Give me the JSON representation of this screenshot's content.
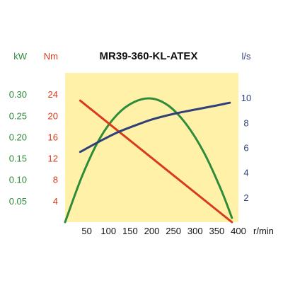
{
  "chart_data": {
    "type": "line",
    "title": "MR39-360-KL-ATEX",
    "x": {
      "unit": "r/min",
      "range": [
        0,
        400
      ],
      "ticks": [
        50,
        100,
        150,
        200,
        250,
        300,
        350,
        400
      ]
    },
    "axes": {
      "kw": {
        "unit": "kW",
        "range": [
          0,
          0.35
        ],
        "ticks": [
          0.05,
          0.1,
          0.15,
          0.2,
          0.25,
          0.3
        ],
        "tick_labels": [
          "0.05",
          "0.10",
          "0.15",
          "0.20",
          "0.25",
          "0.30"
        ],
        "color": "#2e8b3a"
      },
      "nm": {
        "unit": "Nm",
        "range": [
          0,
          28
        ],
        "ticks": [
          4,
          8,
          12,
          16,
          20,
          24
        ],
        "tick_labels": [
          "4",
          "8",
          "12",
          "16",
          "20",
          "24"
        ],
        "color": "#d93a1b"
      },
      "ls": {
        "unit": "l/s",
        "range": [
          0,
          12
        ],
        "ticks": [
          2,
          4,
          6,
          8,
          10
        ],
        "tick_labels": [
          "2",
          "4",
          "6",
          "8",
          "10"
        ],
        "color": "#2f3f78"
      }
    },
    "series": [
      {
        "axis": "kw",
        "color": "#2e8b3a",
        "points": [
          [
            0,
            0.0
          ],
          [
            40,
            0.11
          ],
          [
            80,
            0.196
          ],
          [
            120,
            0.252
          ],
          [
            160,
            0.282
          ],
          [
            200,
            0.29
          ],
          [
            240,
            0.272
          ],
          [
            280,
            0.229
          ],
          [
            320,
            0.164
          ],
          [
            360,
            0.076
          ],
          [
            385,
            0.01
          ]
        ]
      },
      {
        "axis": "nm",
        "color": "#d93a1b",
        "points": [
          [
            35,
            22.8
          ],
          [
            385,
            0.0
          ]
        ]
      },
      {
        "axis": "ls",
        "color": "#2f3f78",
        "points": [
          [
            35,
            5.65
          ],
          [
            80,
            6.5
          ],
          [
            120,
            7.2
          ],
          [
            160,
            7.75
          ],
          [
            200,
            8.25
          ],
          [
            250,
            8.7
          ],
          [
            300,
            9.05
          ],
          [
            345,
            9.35
          ],
          [
            380,
            9.6
          ]
        ]
      }
    ],
    "plot_background": "#fff1a8",
    "grid": false
  }
}
